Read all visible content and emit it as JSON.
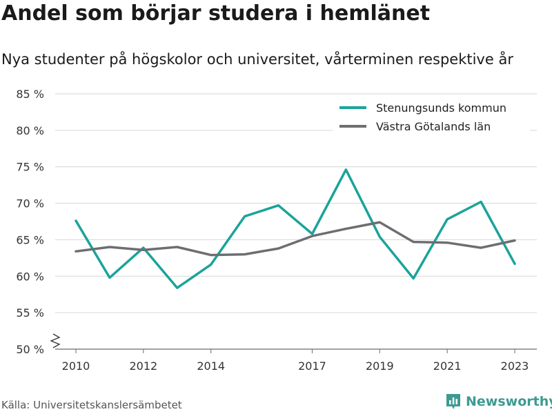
{
  "title": "Andel som börjar studera i hemlänet",
  "subtitle": "Nya studenter på högskolor och universitet, vårterminen respektive år",
  "source": "Källa: Universitetskanslersämbetet",
  "brand": {
    "name": "Newsworthy",
    "icon": "newsworthy-logo-icon",
    "color": "#3d9a93"
  },
  "chart_data": {
    "type": "line",
    "x": [
      2010,
      2011,
      2012,
      2013,
      2014,
      2015,
      2016,
      2017,
      2018,
      2019,
      2020,
      2021,
      2022,
      2023
    ],
    "xticks": [
      "2010",
      "2012",
      "2014",
      "2017",
      "2019",
      "2021",
      "2023"
    ],
    "xtick_values": [
      2010,
      2012,
      2014,
      2017,
      2019,
      2021,
      2023
    ],
    "yticks": [
      "50 %",
      "55 %",
      "60 %",
      "65 %",
      "70 %",
      "75 %",
      "80 %",
      "85 %"
    ],
    "ytick_values": [
      50,
      55,
      60,
      65,
      70,
      75,
      80,
      85
    ],
    "ylim": [
      50,
      85
    ],
    "xlabel": "",
    "ylabel": "",
    "grid": true,
    "axis_break": true,
    "legend_position": "top-right",
    "series": [
      {
        "name": "Stenungsunds kommun",
        "color": "#1aa39a",
        "values": [
          67.6,
          59.8,
          63.9,
          58.4,
          61.6,
          68.2,
          69.7,
          65.8,
          74.6,
          65.4,
          59.7,
          67.8,
          70.2,
          61.7
        ]
      },
      {
        "name": "Västra Götalands län",
        "color": "#6e6d72",
        "values": [
          63.4,
          64.0,
          63.6,
          64.0,
          62.9,
          63.0,
          63.8,
          65.5,
          66.5,
          67.4,
          64.7,
          64.6,
          63.9,
          64.9
        ]
      }
    ]
  }
}
